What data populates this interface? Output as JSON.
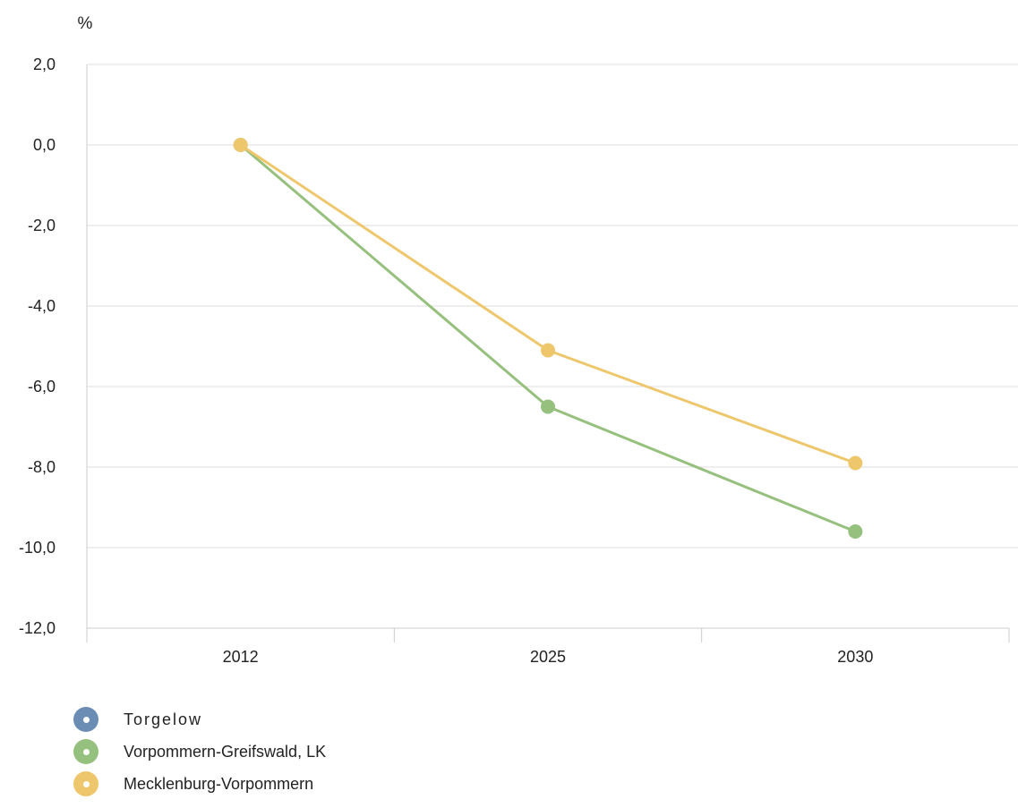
{
  "chart_data": {
    "type": "line",
    "title": "",
    "xlabel": "",
    "ylabel": "%",
    "categories": [
      "2012",
      "2025",
      "2030"
    ],
    "ylim": [
      -12,
      2
    ],
    "yticks": [
      2,
      0,
      -2,
      -4,
      -6,
      -8,
      -10,
      -12
    ],
    "ytick_labels": [
      "2,0",
      "0,0",
      "-2,0",
      "-4,0",
      "-6,0",
      "-8,0",
      "-10,0",
      "-12,0"
    ],
    "grid": true,
    "legend_position": "bottom-left",
    "series": [
      {
        "name": "Torgelow",
        "color": "#6b8cb3",
        "values": [
          null,
          null,
          null
        ]
      },
      {
        "name": "Vorpommern-Greifswald, LK",
        "color": "#96c07d",
        "values": [
          0.0,
          -6.5,
          -9.6
        ]
      },
      {
        "name": "Mecklenburg-Vorpommern",
        "color": "#eec76d",
        "values": [
          0.0,
          -5.1,
          -7.9
        ]
      }
    ]
  }
}
